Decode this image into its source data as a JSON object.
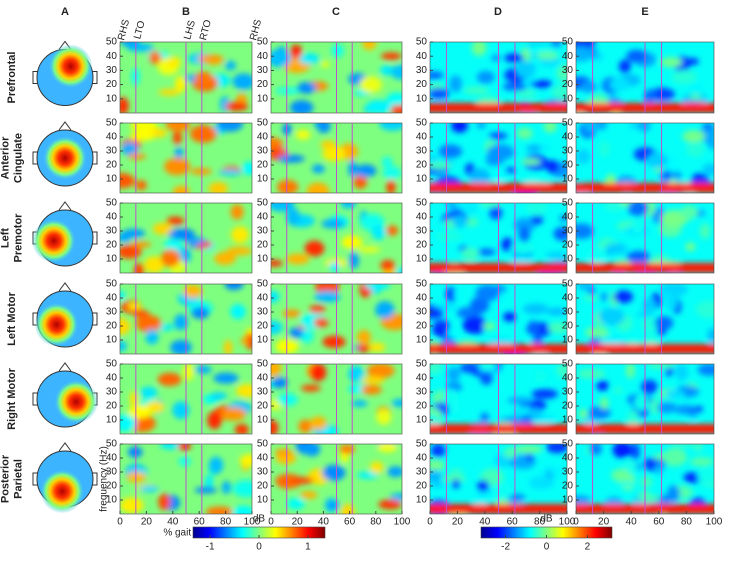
{
  "columns": [
    "A",
    "B",
    "C",
    "D",
    "E"
  ],
  "rows": [
    [
      "Prefrontal"
    ],
    [
      "Anterior",
      "Cingulate"
    ],
    [
      "Left",
      "Premotor"
    ],
    [
      "Left Motor"
    ],
    [
      "Right Motor"
    ],
    [
      "Posterior",
      "Parietal"
    ]
  ],
  "gait_events": [
    {
      "value": 0,
      "label": "RHS"
    },
    {
      "value": 12,
      "label": "LTO"
    },
    {
      "value": 50,
      "label": "LHS"
    },
    {
      "value": 62,
      "label": "RTO"
    },
    {
      "value": 100,
      "label": "RHS"
    }
  ],
  "xlim": [
    0,
    100
  ],
  "xticks": [
    0,
    20,
    40,
    60,
    80,
    100
  ],
  "ylim": [
    0,
    50
  ],
  "yticks": [
    10,
    20,
    30,
    40,
    50
  ],
  "xlabel": "% gait cycle",
  "ylabel": "frequency (Hz)",
  "colorbars": [
    {
      "label": "dB",
      "lim": [
        -1.35,
        1.35
      ],
      "ticks": [
        -1,
        0,
        1
      ]
    },
    {
      "label": "dB",
      "lim": [
        -3.2,
        3.2
      ],
      "ticks": [
        -2,
        0,
        2
      ]
    }
  ]
}
